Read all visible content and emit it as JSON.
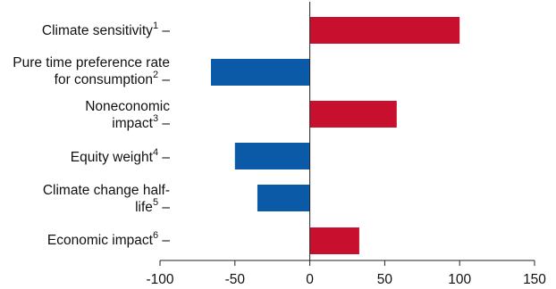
{
  "chart_data": {
    "type": "bar",
    "orientation": "horizontal",
    "categories": [
      {
        "text": "Climate sensitivity",
        "sup": "1"
      },
      {
        "text": "Pure time preference rate for consumption",
        "sup": "2"
      },
      {
        "text": "Noneconomic impact",
        "sup": "3"
      },
      {
        "text": "Equity weight",
        "sup": "4"
      },
      {
        "text": "Climate change half-life",
        "sup": "5"
      },
      {
        "text": "Economic impact",
        "sup": "6"
      }
    ],
    "values": [
      100,
      -66,
      58,
      -50,
      -35,
      33
    ],
    "xlim": [
      -100,
      150
    ],
    "xticks": [
      "-100",
      "-50",
      "0",
      "50",
      "100",
      "150"
    ],
    "colors": {
      "positive": "#c8102e",
      "negative": "#0a5aa8"
    },
    "grid": false
  }
}
